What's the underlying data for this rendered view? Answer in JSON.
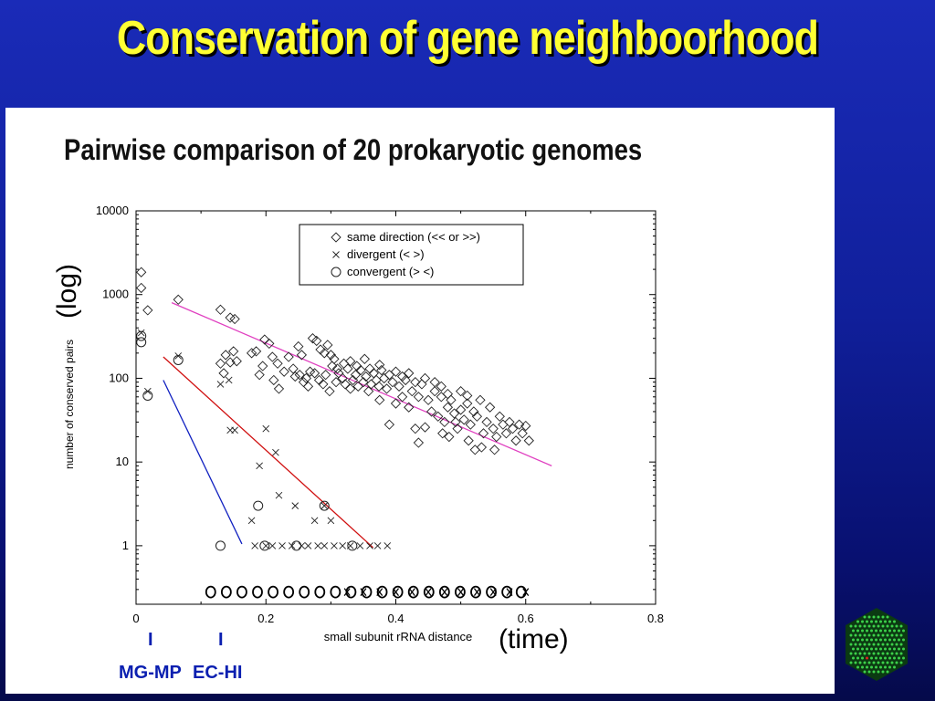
{
  "slide_title": "Conservation of gene neighboorhood",
  "annotations": {
    "y_note": "(log)",
    "x_note": "(time)",
    "species": [
      {
        "tick": "I",
        "label": "MG-MP",
        "x_value": 0.025
      },
      {
        "tick": "I",
        "label": "EC-HI",
        "x_value": 0.133
      }
    ]
  },
  "colors": {
    "background": "#1a2bb8",
    "title": "#ffff33",
    "panel": "#ffffff",
    "trend_same": "#e040c0",
    "trend_divergent": "#d01010",
    "trend_convergent": "#1020c0",
    "species": "#0a1fb0"
  },
  "logo_icon": "hexagon-dot-grid-icon",
  "chart_data": {
    "type": "scatter",
    "title": "Pairwise comparison of 20 prokaryotic genomes",
    "xlabel": "small subunit rRNA distance",
    "ylabel": "number of conserved pairs",
    "xlim": [
      0,
      0.8
    ],
    "ylim": [
      0.2,
      10000
    ],
    "yscale": "log",
    "x_ticks": [
      "0",
      "0.2",
      "0.4",
      "0.6",
      "0.8"
    ],
    "y_ticks": [
      "1",
      "10",
      "100",
      "1000",
      "10000"
    ],
    "legend": {
      "position": "top-right",
      "entries": [
        {
          "marker": "diamond",
          "label": "same direction (<< or >>)"
        },
        {
          "marker": "x",
          "label": "divergent (< >)"
        },
        {
          "marker": "circle",
          "label": "convergent (> <)"
        }
      ]
    },
    "bottom_row": {
      "y": 0.28,
      "o_x": [
        0.115,
        0.139,
        0.163,
        0.187,
        0.211,
        0.235,
        0.259,
        0.283,
        0.307,
        0.331,
        0.355,
        0.379,
        0.403,
        0.427,
        0.451,
        0.475,
        0.499,
        0.523,
        0.547,
        0.571,
        0.593
      ],
      "x_x": [
        0.325,
        0.35,
        0.375,
        0.4,
        0.425,
        0.45,
        0.475,
        0.5,
        0.525,
        0.55,
        0.575,
        0.6
      ]
    },
    "series": [
      {
        "name": "same direction (<< or >>)",
        "marker": "diamond",
        "points": [
          [
            0.008,
            1850
          ],
          [
            0.008,
            1200
          ],
          [
            0.018,
            650
          ],
          [
            0.065,
            870
          ],
          [
            0.13,
            660
          ],
          [
            0.145,
            530
          ],
          [
            0.152,
            510
          ],
          [
            0.13,
            150
          ],
          [
            0.138,
            190
          ],
          [
            0.145,
            155
          ],
          [
            0.15,
            210
          ],
          [
            0.155,
            160
          ],
          [
            0.135,
            115
          ],
          [
            0.178,
            200
          ],
          [
            0.185,
            210
          ],
          [
            0.198,
            290
          ],
          [
            0.205,
            260
          ],
          [
            0.19,
            110
          ],
          [
            0.195,
            140
          ],
          [
            0.21,
            180
          ],
          [
            0.218,
            150
          ],
          [
            0.212,
            95
          ],
          [
            0.22,
            75
          ],
          [
            0.228,
            120
          ],
          [
            0.235,
            180
          ],
          [
            0.242,
            130
          ],
          [
            0.25,
            240
          ],
          [
            0.255,
            190
          ],
          [
            0.262,
            100
          ],
          [
            0.268,
            120
          ],
          [
            0.272,
            300
          ],
          [
            0.278,
            280
          ],
          [
            0.284,
            220
          ],
          [
            0.29,
            200
          ],
          [
            0.295,
            250
          ],
          [
            0.3,
            190
          ],
          [
            0.305,
            170
          ],
          [
            0.31,
            130
          ],
          [
            0.245,
            105
          ],
          [
            0.252,
            110
          ],
          [
            0.258,
            90
          ],
          [
            0.265,
            80
          ],
          [
            0.275,
            115
          ],
          [
            0.282,
            95
          ],
          [
            0.288,
            85
          ],
          [
            0.292,
            110
          ],
          [
            0.298,
            70
          ],
          [
            0.302,
            140
          ],
          [
            0.308,
            90
          ],
          [
            0.312,
            115
          ],
          [
            0.318,
            100
          ],
          [
            0.322,
            85
          ],
          [
            0.326,
            130
          ],
          [
            0.33,
            75
          ],
          [
            0.334,
            95
          ],
          [
            0.338,
            110
          ],
          [
            0.342,
            80
          ],
          [
            0.346,
            125
          ],
          [
            0.35,
            90
          ],
          [
            0.354,
            105
          ],
          [
            0.358,
            70
          ],
          [
            0.362,
            85
          ],
          [
            0.366,
            115
          ],
          [
            0.37,
            95
          ],
          [
            0.374,
            80
          ],
          [
            0.378,
            125
          ],
          [
            0.382,
            100
          ],
          [
            0.386,
            75
          ],
          [
            0.32,
            150
          ],
          [
            0.33,
            160
          ],
          [
            0.34,
            140
          ],
          [
            0.352,
            170
          ],
          [
            0.36,
            130
          ],
          [
            0.375,
            145
          ],
          [
            0.39,
            110
          ],
          [
            0.395,
            90
          ],
          [
            0.4,
            120
          ],
          [
            0.405,
            80
          ],
          [
            0.41,
            105
          ],
          [
            0.415,
            95
          ],
          [
            0.42,
            115
          ],
          [
            0.425,
            70
          ],
          [
            0.43,
            90
          ],
          [
            0.435,
            60
          ],
          [
            0.44,
            85
          ],
          [
            0.445,
            100
          ],
          [
            0.39,
            28
          ],
          [
            0.375,
            55
          ],
          [
            0.4,
            50
          ],
          [
            0.41,
            60
          ],
          [
            0.42,
            45
          ],
          [
            0.43,
            25
          ],
          [
            0.45,
            55
          ],
          [
            0.455,
            40
          ],
          [
            0.46,
            70
          ],
          [
            0.465,
            35
          ],
          [
            0.47,
            60
          ],
          [
            0.475,
            30
          ],
          [
            0.48,
            45
          ],
          [
            0.485,
            55
          ],
          [
            0.49,
            38
          ],
          [
            0.495,
            25
          ],
          [
            0.5,
            42
          ],
          [
            0.505,
            32
          ],
          [
            0.51,
            50
          ],
          [
            0.515,
            28
          ],
          [
            0.52,
            40
          ],
          [
            0.525,
            35
          ],
          [
            0.53,
            55
          ],
          [
            0.535,
            22
          ],
          [
            0.54,
            30
          ],
          [
            0.545,
            45
          ],
          [
            0.55,
            25
          ],
          [
            0.555,
            20
          ],
          [
            0.56,
            35
          ],
          [
            0.565,
            28
          ],
          [
            0.57,
            22
          ],
          [
            0.575,
            30
          ],
          [
            0.58,
            25
          ],
          [
            0.585,
            18
          ],
          [
            0.59,
            28
          ],
          [
            0.595,
            22
          ],
          [
            0.6,
            27
          ],
          [
            0.605,
            18
          ],
          [
            0.435,
            17
          ],
          [
            0.445,
            26
          ],
          [
            0.472,
            22
          ],
          [
            0.482,
            20
          ],
          [
            0.492,
            30
          ],
          [
            0.512,
            18
          ],
          [
            0.522,
            14
          ],
          [
            0.532,
            15
          ],
          [
            0.552,
            14
          ],
          [
            0.51,
            62
          ],
          [
            0.5,
            70
          ],
          [
            0.47,
            80
          ],
          [
            0.46,
            90
          ],
          [
            0.48,
            65
          ]
        ]
      },
      {
        "name": "divergent (< >)",
        "marker": "x",
        "points": [
          [
            0.008,
            350
          ],
          [
            0.018,
            70
          ],
          [
            0.065,
            185
          ],
          [
            0.13,
            85
          ],
          [
            0.143,
            95
          ],
          [
            0.145,
            24
          ],
          [
            0.152,
            24
          ],
          [
            0.2,
            25
          ],
          [
            0.215,
            13
          ],
          [
            0.19,
            9
          ],
          [
            0.178,
            2
          ],
          [
            0.22,
            4
          ],
          [
            0.245,
            3
          ],
          [
            0.275,
            2
          ],
          [
            0.29,
            3
          ],
          [
            0.3,
            2
          ],
          [
            0.183,
            1
          ],
          [
            0.2,
            1
          ],
          [
            0.21,
            1
          ],
          [
            0.225,
            1
          ],
          [
            0.24,
            1
          ],
          [
            0.255,
            1
          ],
          [
            0.265,
            1
          ],
          [
            0.28,
            1
          ],
          [
            0.29,
            1
          ],
          [
            0.305,
            1
          ],
          [
            0.318,
            1
          ],
          [
            0.33,
            1
          ],
          [
            0.345,
            1
          ],
          [
            0.36,
            1
          ],
          [
            0.372,
            1
          ],
          [
            0.387,
            1
          ]
        ]
      },
      {
        "name": "convergent (> <)",
        "marker": "circle",
        "points": [
          [
            0.008,
            320
          ],
          [
            0.008,
            270
          ],
          [
            0.018,
            62
          ],
          [
            0.065,
            165
          ],
          [
            0.13,
            1
          ],
          [
            0.188,
            3
          ],
          [
            0.198,
            1
          ],
          [
            0.247,
            1
          ],
          [
            0.29,
            3
          ],
          [
            0.333,
            1
          ]
        ]
      }
    ],
    "trend_lines": [
      {
        "series": "same direction (<< or >>)",
        "from": [
          0.055,
          800
        ],
        "to": [
          0.64,
          9
        ]
      },
      {
        "series": "divergent (< >)",
        "from": [
          0.042,
          180
        ],
        "to": [
          0.365,
          0.95
        ]
      },
      {
        "series": "convergent (> <)",
        "from": [
          0.042,
          95
        ],
        "to": [
          0.163,
          1.05
        ]
      }
    ]
  }
}
